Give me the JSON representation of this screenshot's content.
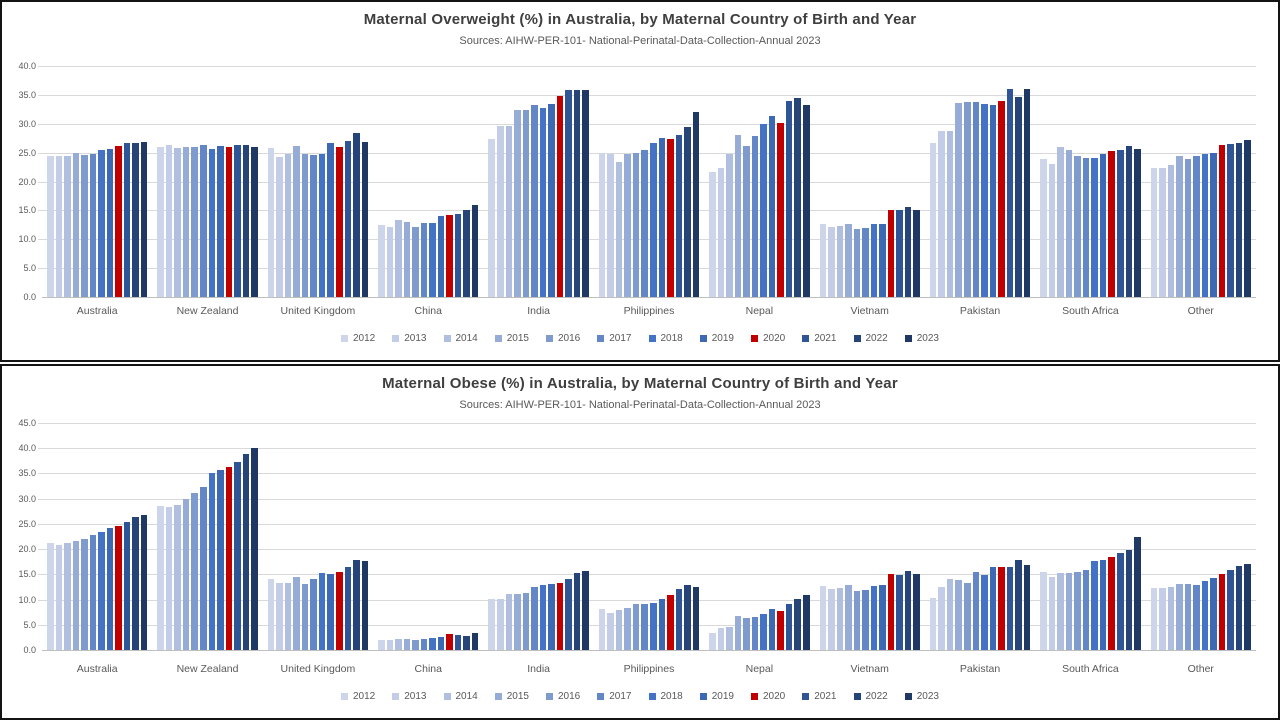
{
  "colors": {
    "highlight_red": "#C00000",
    "title_text": "#3F3F3F",
    "axis_text": "#595959",
    "gridline": "#D9D9D9",
    "panel_border": "#141414"
  },
  "chart_data": [
    {
      "type": "bar",
      "title": "Maternal Overweight (%) in Australia, by Maternal Country of Birth and Year",
      "subtitle": "Sources: AIHW-PER-101- National-Perinatal-Data-Collection-Annual 2023",
      "categories": [
        "Australia",
        "New Zealand",
        "United Kingdom",
        "China",
        "India",
        "Philippines",
        "Nepal",
        "Vietnam",
        "Pakistan",
        "South Africa",
        "Other"
      ],
      "ylim": [
        0,
        40
      ],
      "ytick_step": 5,
      "grid": true,
      "legend_position": "bottom",
      "series": [
        {
          "name": "2012",
          "color": "#CDD5EA",
          "values": [
            24.4,
            26.0,
            25.8,
            12.5,
            27.3,
            24.9,
            21.7,
            12.6,
            26.6,
            23.9,
            22.3
          ]
        },
        {
          "name": "2013",
          "color": "#C4CDE7",
          "values": [
            24.4,
            26.3,
            24.3,
            12.2,
            29.6,
            24.7,
            22.4,
            12.1,
            28.8,
            23.0,
            22.3
          ]
        },
        {
          "name": "2014",
          "color": "#B0BFE0",
          "values": [
            24.5,
            25.8,
            24.8,
            13.4,
            29.6,
            23.4,
            24.8,
            12.3,
            28.8,
            25.9,
            22.9
          ]
        },
        {
          "name": "2015",
          "color": "#97ABD7",
          "values": [
            25.0,
            25.9,
            26.1,
            13.0,
            32.3,
            24.7,
            28.1,
            12.6,
            33.6,
            25.5,
            24.4
          ]
        },
        {
          "name": "2016",
          "color": "#7F9ACD",
          "values": [
            24.6,
            26.0,
            24.7,
            12.1,
            32.4,
            24.9,
            26.1,
            11.8,
            33.8,
            24.4,
            23.9
          ]
        },
        {
          "name": "2017",
          "color": "#6387C6",
          "values": [
            24.8,
            26.4,
            24.6,
            12.8,
            33.3,
            25.4,
            27.8,
            12.0,
            33.7,
            24.0,
            24.5
          ]
        },
        {
          "name": "2018",
          "color": "#4472C4",
          "values": [
            25.4,
            25.7,
            24.7,
            12.8,
            32.7,
            26.6,
            30.0,
            12.7,
            33.4,
            24.0,
            24.8
          ]
        },
        {
          "name": "2019",
          "color": "#3C68B4",
          "values": [
            25.6,
            26.2,
            26.6,
            14.1,
            33.5,
            27.5,
            31.3,
            12.6,
            33.2,
            24.8,
            25.0
          ]
        },
        {
          "name": "2020",
          "color": "#C00000",
          "values": [
            26.2,
            25.9,
            26.0,
            14.2,
            34.8,
            27.4,
            30.1,
            15.1,
            33.9,
            25.2,
            26.3
          ]
        },
        {
          "name": "2021",
          "color": "#2F5597",
          "values": [
            26.6,
            26.3,
            27.1,
            14.4,
            35.8,
            28.0,
            33.9,
            15.1,
            36.0,
            25.5,
            26.5
          ]
        },
        {
          "name": "2022",
          "color": "#264478",
          "values": [
            26.7,
            26.3,
            28.4,
            15.0,
            35.8,
            29.4,
            34.5,
            15.6,
            34.7,
            26.2,
            26.6
          ]
        },
        {
          "name": "2023",
          "color": "#1F3864",
          "values": [
            26.9,
            26.0,
            26.8,
            16.0,
            35.8,
            32.0,
            33.2,
            15.1,
            36.1,
            25.7,
            27.2
          ]
        }
      ]
    },
    {
      "type": "bar",
      "title": "Maternal Obese (%) in Australia, by Maternal Country of Birth and Year",
      "subtitle": "Sources: AIHW-PER-101- National-Perinatal-Data-Collection-Annual 2023",
      "categories": [
        "Australia",
        "New Zealand",
        "United Kingdom",
        "China",
        "India",
        "Philippines",
        "Nepal",
        "Vietnam",
        "Pakistan",
        "South Africa",
        "Other"
      ],
      "ylim": [
        0,
        45
      ],
      "ytick_step": 5,
      "grid": true,
      "legend_position": "bottom",
      "series": [
        {
          "name": "2012",
          "color": "#CDD5EA",
          "values": [
            21.2,
            28.6,
            14.0,
            2.0,
            10.1,
            8.1,
            3.4,
            12.7,
            10.4,
            15.5,
            12.2
          ]
        },
        {
          "name": "2013",
          "color": "#C4CDE7",
          "values": [
            20.9,
            28.4,
            13.3,
            2.0,
            10.1,
            7.3,
            4.3,
            12.0,
            12.5,
            14.5,
            12.2
          ]
        },
        {
          "name": "2014",
          "color": "#B0BFE0",
          "values": [
            21.3,
            28.8,
            13.3,
            2.2,
            11.2,
            7.9,
            4.5,
            12.2,
            14.0,
            15.3,
            12.5
          ]
        },
        {
          "name": "2015",
          "color": "#97ABD7",
          "values": [
            21.6,
            29.9,
            14.5,
            2.1,
            11.2,
            8.4,
            6.7,
            12.9,
            13.9,
            15.3,
            13.0
          ]
        },
        {
          "name": "2016",
          "color": "#7F9ACD",
          "values": [
            22.0,
            31.1,
            13.0,
            2.0,
            11.4,
            9.2,
            6.4,
            11.7,
            13.3,
            15.5,
            13.0
          ]
        },
        {
          "name": "2017",
          "color": "#6387C6",
          "values": [
            22.8,
            32.4,
            14.0,
            2.1,
            12.4,
            9.2,
            6.6,
            11.9,
            15.5,
            15.9,
            12.9
          ]
        },
        {
          "name": "2018",
          "color": "#4472C4",
          "values": [
            23.4,
            35.1,
            15.3,
            2.4,
            12.9,
            9.3,
            7.1,
            12.7,
            14.9,
            17.6,
            13.6
          ]
        },
        {
          "name": "2019",
          "color": "#3C68B4",
          "values": [
            24.1,
            35.7,
            15.1,
            2.6,
            13.0,
            10.1,
            8.2,
            12.8,
            16.4,
            17.8,
            14.3
          ]
        },
        {
          "name": "2020",
          "color": "#C00000",
          "values": [
            24.5,
            36.3,
            15.5,
            3.1,
            13.3,
            10.9,
            7.8,
            15.0,
            16.4,
            18.4,
            15.1
          ]
        },
        {
          "name": "2021",
          "color": "#2F5597",
          "values": [
            25.3,
            37.2,
            16.4,
            2.9,
            14.0,
            12.0,
            9.2,
            14.9,
            16.4,
            19.3,
            15.8
          ]
        },
        {
          "name": "2022",
          "color": "#264478",
          "values": [
            26.3,
            38.9,
            17.8,
            2.8,
            15.2,
            12.8,
            10.1,
            15.6,
            17.9,
            19.8,
            16.6
          ]
        },
        {
          "name": "2023",
          "color": "#1F3864",
          "values": [
            26.7,
            40.0,
            17.7,
            3.3,
            15.7,
            12.5,
            10.9,
            15.0,
            16.9,
            22.4,
            17.1
          ]
        }
      ]
    }
  ]
}
